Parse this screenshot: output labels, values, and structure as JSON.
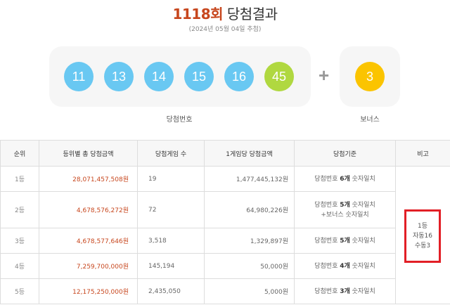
{
  "header": {
    "round": "1118회",
    "title_suffix": "당첨결과",
    "date": "(2024년 05월 04일 추첨)"
  },
  "numbers": {
    "main": [
      "11",
      "13",
      "14",
      "15",
      "16",
      "45"
    ],
    "main_colors": [
      "#69c8f2",
      "#69c8f2",
      "#69c8f2",
      "#69c8f2",
      "#69c8f2",
      "#b0d840"
    ],
    "plus": "+",
    "bonus": "3",
    "bonus_color": "#fbc400",
    "main_label": "당첨번호",
    "bonus_label": "보너스"
  },
  "table": {
    "headers": [
      "순위",
      "등위별 총 당첨금액",
      "당첨게임 수",
      "1게임당 당첨금액",
      "당첨기준",
      "비고"
    ],
    "rows": [
      {
        "rank": "1등",
        "total": "28,071,457,508원",
        "winners": "19",
        "per_game": "1,477,445,132원",
        "crit_a": "당첨번호 ",
        "crit_b": "6개",
        "crit_c": " 숫자일치",
        "crit_d": ""
      },
      {
        "rank": "2등",
        "total": "4,678,576,272원",
        "winners": "72",
        "per_game": "64,980,226원",
        "crit_a": "당첨번호 ",
        "crit_b": "5개",
        "crit_c": " 숫자일치",
        "crit_d": "+보너스 숫자일치"
      },
      {
        "rank": "3등",
        "total": "4,678,577,646원",
        "winners": "3,518",
        "per_game": "1,329,897원",
        "crit_a": "당첨번호 ",
        "crit_b": "5개",
        "crit_c": " 숫자일치",
        "crit_d": ""
      },
      {
        "rank": "4등",
        "total": "7,259,700,000원",
        "winners": "145,194",
        "per_game": "50,000원",
        "crit_a": "당첨번호 ",
        "crit_b": "4개",
        "crit_c": " 숫자일치",
        "crit_d": ""
      },
      {
        "rank": "5등",
        "total": "12,175,250,000원",
        "winners": "2,435,050",
        "per_game": "5,000원",
        "crit_a": "당첨번호 ",
        "crit_b": "3개",
        "crit_c": " 숫자일치",
        "crit_d": ""
      }
    ],
    "note": {
      "line1": "1등",
      "line2": "자동16",
      "line3": "수동3"
    }
  },
  "colors": {
    "accent": "#c7461d",
    "highlight_box": "#e21f26"
  }
}
